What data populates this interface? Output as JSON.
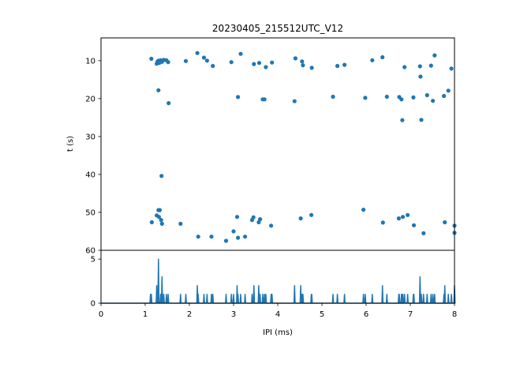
{
  "chart_data": [
    {
      "type": "scatter",
      "title": "20230405_215512UTC_V12",
      "xlabel": "",
      "ylabel": "t (s)",
      "xlim": [
        0,
        8
      ],
      "ylim": [
        60,
        4
      ],
      "y_inverted": true,
      "yticks": [
        10,
        20,
        30,
        40,
        50,
        60
      ],
      "color": "#1f77b4",
      "grid": false,
      "points": [
        [
          1.14,
          9.5
        ],
        [
          1.26,
          10.8
        ],
        [
          1.28,
          10.2
        ],
        [
          1.3,
          10.0
        ],
        [
          1.32,
          10.6
        ],
        [
          1.35,
          9.9
        ],
        [
          1.38,
          10.3
        ],
        [
          1.42,
          9.8
        ],
        [
          1.48,
          9.9
        ],
        [
          1.52,
          10.4
        ],
        [
          1.3,
          17.8
        ],
        [
          1.53,
          21.2
        ],
        [
          1.92,
          10.1
        ],
        [
          2.18,
          8.0
        ],
        [
          2.33,
          9.2
        ],
        [
          2.4,
          10.0
        ],
        [
          2.53,
          11.4
        ],
        [
          2.95,
          10.4
        ],
        [
          3.16,
          8.2
        ],
        [
          3.1,
          19.6
        ],
        [
          3.66,
          20.2
        ],
        [
          3.7,
          20.2
        ],
        [
          3.46,
          10.9
        ],
        [
          3.58,
          10.6
        ],
        [
          3.73,
          11.7
        ],
        [
          3.87,
          10.5
        ],
        [
          4.4,
          9.4
        ],
        [
          4.55,
          10.2
        ],
        [
          4.57,
          11.2
        ],
        [
          4.77,
          11.9
        ],
        [
          4.38,
          20.7
        ],
        [
          5.25,
          19.5
        ],
        [
          5.35,
          11.4
        ],
        [
          5.51,
          11.1
        ],
        [
          5.98,
          19.8
        ],
        [
          6.14,
          9.9
        ],
        [
          6.37,
          9.1
        ],
        [
          6.47,
          19.5
        ],
        [
          6.75,
          19.6
        ],
        [
          6.8,
          20.2
        ],
        [
          6.82,
          25.7
        ],
        [
          6.87,
          11.7
        ],
        [
          7.07,
          19.7
        ],
        [
          7.22,
          11.5
        ],
        [
          7.23,
          14.2
        ],
        [
          7.25,
          25.6
        ],
        [
          7.38,
          19.1
        ],
        [
          7.47,
          11.3
        ],
        [
          7.51,
          20.6
        ],
        [
          7.55,
          8.6
        ],
        [
          7.76,
          19.3
        ],
        [
          7.86,
          17.9
        ],
        [
          7.93,
          12.1
        ],
        [
          1.37,
          40.4
        ],
        [
          1.15,
          52.6
        ],
        [
          1.26,
          50.8
        ],
        [
          1.3,
          49.4
        ],
        [
          1.33,
          49.4
        ],
        [
          1.31,
          51.2
        ],
        [
          1.36,
          52.0
        ],
        [
          1.38,
          53.0
        ],
        [
          1.8,
          53.0
        ],
        [
          2.2,
          56.4
        ],
        [
          2.5,
          56.4
        ],
        [
          2.83,
          57.5
        ],
        [
          3.0,
          55.0
        ],
        [
          3.08,
          51.2
        ],
        [
          3.1,
          56.7
        ],
        [
          3.26,
          56.4
        ],
        [
          3.42,
          52.0
        ],
        [
          3.45,
          51.3
        ],
        [
          3.57,
          52.6
        ],
        [
          3.6,
          51.8
        ],
        [
          3.85,
          53.5
        ],
        [
          4.52,
          51.6
        ],
        [
          4.76,
          50.7
        ],
        [
          5.94,
          49.3
        ],
        [
          6.38,
          52.7
        ],
        [
          6.74,
          51.6
        ],
        [
          6.83,
          51.2
        ],
        [
          6.94,
          50.7
        ],
        [
          7.08,
          53.4
        ],
        [
          7.3,
          55.5
        ],
        [
          7.78,
          52.6
        ],
        [
          8.0,
          53.5
        ],
        [
          8.0,
          55.4
        ]
      ]
    },
    {
      "type": "line",
      "title": "",
      "xlabel": "IPI (ms)",
      "ylabel": "",
      "xlim": [
        0,
        8
      ],
      "ylim": [
        0,
        6
      ],
      "xticks": [
        0,
        1,
        2,
        3,
        4,
        5,
        6,
        7,
        8
      ],
      "yticks": [
        0,
        5
      ],
      "color": "#1f77b4",
      "grid": false,
      "peaks": [
        [
          1.12,
          1
        ],
        [
          1.14,
          1
        ],
        [
          1.26,
          2
        ],
        [
          1.3,
          5
        ],
        [
          1.35,
          1
        ],
        [
          1.38,
          3
        ],
        [
          1.42,
          1
        ],
        [
          1.48,
          1
        ],
        [
          1.52,
          1
        ],
        [
          1.8,
          1
        ],
        [
          1.92,
          1
        ],
        [
          2.18,
          2
        ],
        [
          2.2,
          1
        ],
        [
          2.33,
          1
        ],
        [
          2.4,
          1
        ],
        [
          2.5,
          1
        ],
        [
          2.53,
          1
        ],
        [
          2.83,
          1
        ],
        [
          2.95,
          1
        ],
        [
          3.0,
          1
        ],
        [
          3.08,
          2
        ],
        [
          3.1,
          1
        ],
        [
          3.16,
          1
        ],
        [
          3.26,
          1
        ],
        [
          3.42,
          1
        ],
        [
          3.46,
          2
        ],
        [
          3.57,
          2
        ],
        [
          3.6,
          1
        ],
        [
          3.66,
          1
        ],
        [
          3.7,
          1
        ],
        [
          3.73,
          1
        ],
        [
          3.85,
          1
        ],
        [
          3.87,
          1
        ],
        [
          4.38,
          2
        ],
        [
          4.52,
          2
        ],
        [
          4.55,
          1
        ],
        [
          4.57,
          1
        ],
        [
          4.76,
          1
        ],
        [
          4.77,
          1
        ],
        [
          5.25,
          1
        ],
        [
          5.35,
          1
        ],
        [
          5.51,
          1
        ],
        [
          5.94,
          1
        ],
        [
          5.98,
          1
        ],
        [
          6.14,
          1
        ],
        [
          6.37,
          2
        ],
        [
          6.47,
          1
        ],
        [
          6.74,
          1
        ],
        [
          6.75,
          1
        ],
        [
          6.8,
          1
        ],
        [
          6.82,
          1
        ],
        [
          6.83,
          1
        ],
        [
          6.87,
          1
        ],
        [
          6.94,
          1
        ],
        [
          7.07,
          1
        ],
        [
          7.08,
          1
        ],
        [
          7.22,
          3
        ],
        [
          7.25,
          1
        ],
        [
          7.3,
          1
        ],
        [
          7.38,
          1
        ],
        [
          7.47,
          1
        ],
        [
          7.51,
          1
        ],
        [
          7.55,
          1
        ],
        [
          7.76,
          1
        ],
        [
          7.78,
          2
        ],
        [
          7.86,
          1
        ],
        [
          7.93,
          1
        ],
        [
          8.0,
          2
        ]
      ]
    }
  ]
}
